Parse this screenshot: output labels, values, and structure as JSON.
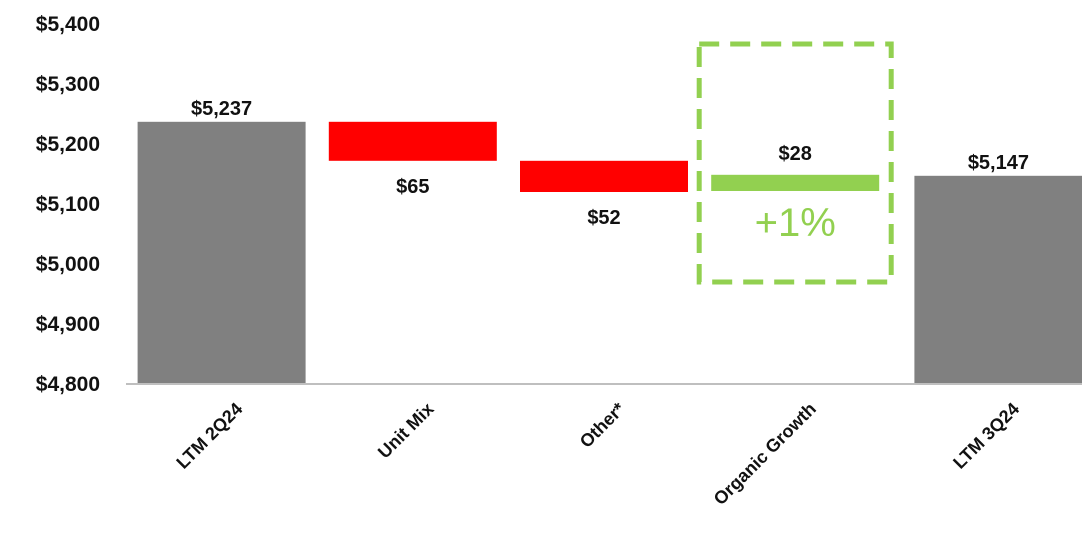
{
  "chart_data": {
    "type": "waterfall",
    "ylim": [
      4800,
      5400
    ],
    "yticks": [
      5400,
      5300,
      5200,
      5100,
      5000,
      4900,
      4800
    ],
    "ytick_labels": [
      "$5,400",
      "$5,300",
      "$5,200",
      "$5,100",
      "$5,000",
      "$4,900",
      "$4,800"
    ],
    "categories": [
      "LTM 2Q24",
      "Unit Mix",
      "Other*",
      "Organic Growth",
      "LTM 3Q24"
    ],
    "bars": [
      {
        "category": "LTM 2Q24",
        "kind": "total",
        "start": 4800,
        "end": 5237,
        "label": "$5,237"
      },
      {
        "category": "Unit Mix",
        "kind": "decrease",
        "start": 5237,
        "end": 5172,
        "label": "$65"
      },
      {
        "category": "Other*",
        "kind": "decrease",
        "start": 5172,
        "end": 5120,
        "label": "$52"
      },
      {
        "category": "Organic Growth",
        "kind": "increase",
        "start": 5120,
        "end": 5147,
        "label": "$28"
      },
      {
        "category": "LTM 3Q24",
        "kind": "total",
        "start": 4800,
        "end": 5147,
        "label": "$5,147"
      }
    ],
    "callout": {
      "text": "+1%"
    },
    "colors": {
      "total": "#808080",
      "decrease": "#ff0000",
      "increase": "#92d050",
      "axis": "#bfbfbf"
    }
  }
}
